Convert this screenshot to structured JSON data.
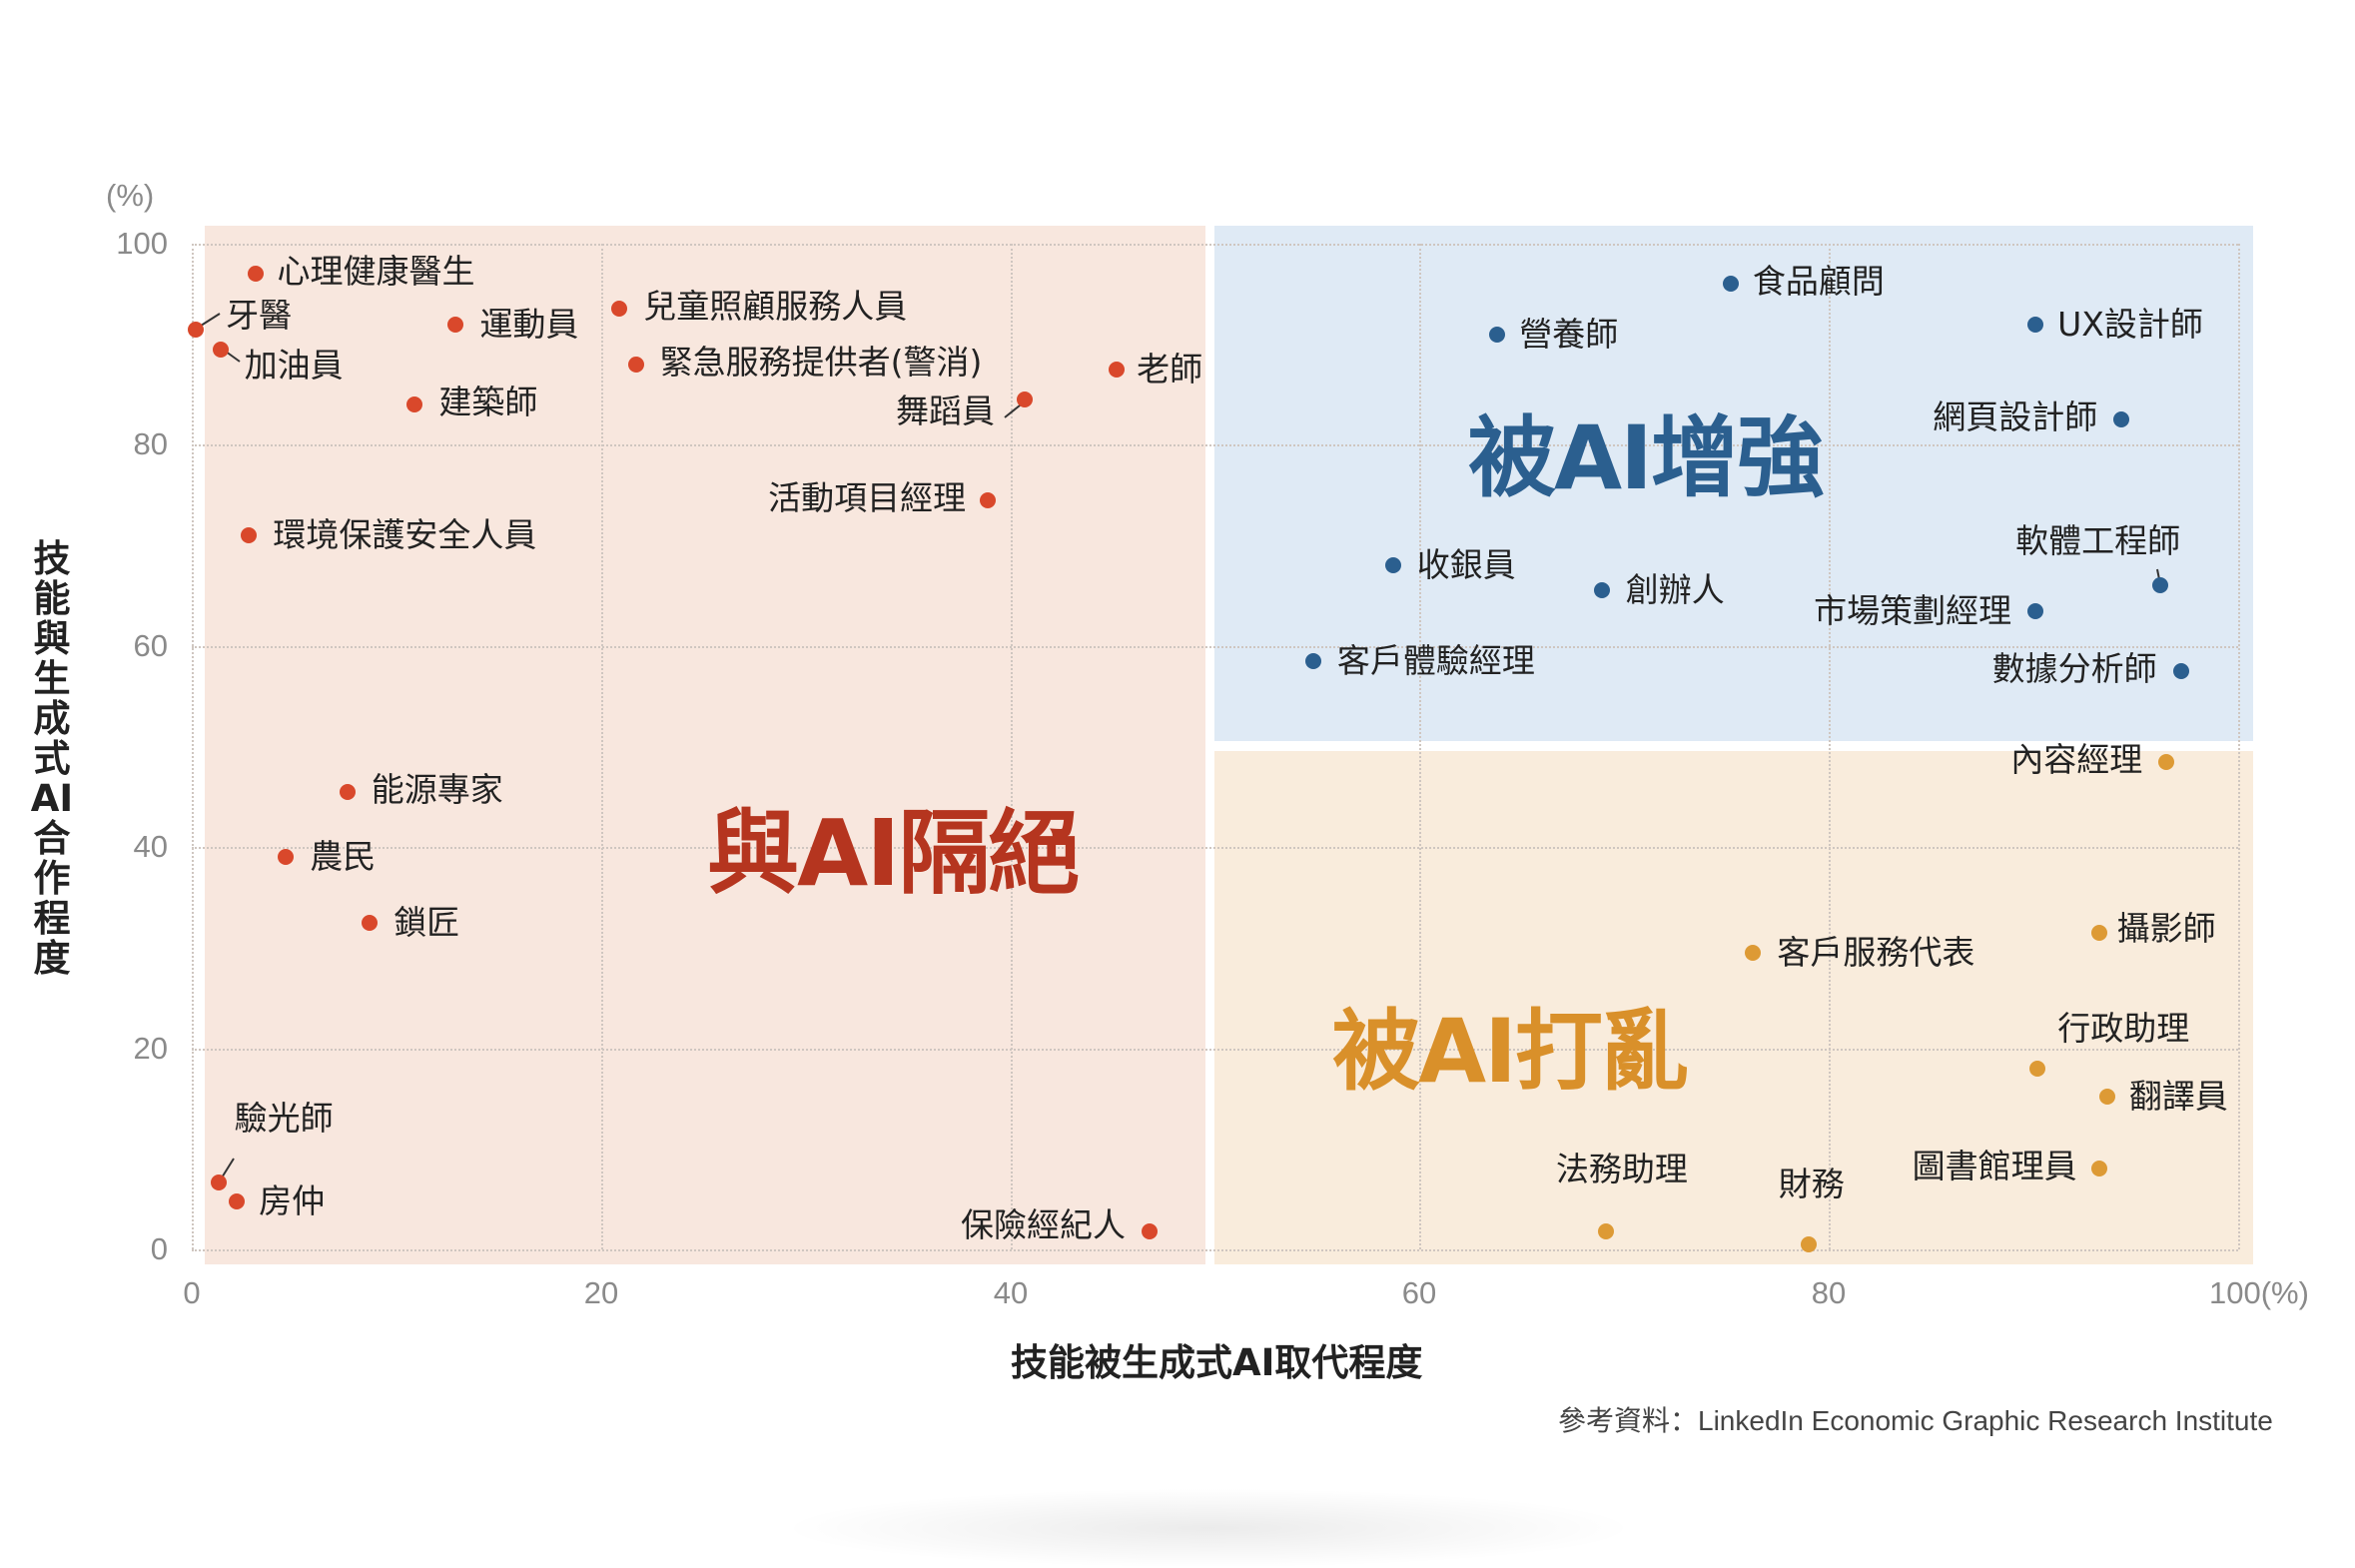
{
  "chart_data": {
    "type": "scatter",
    "title": "",
    "xlabel": "技能被生成式AI取代程度",
    "ylabel": "技能與生成式AI合作程度",
    "x_unit": "(%)",
    "y_unit": "(%)",
    "xlim": [
      0,
      100
    ],
    "ylim": [
      0,
      100
    ],
    "x_ticks": [
      "0",
      "20",
      "40",
      "60",
      "80",
      "100"
    ],
    "y_ticks": [
      "0",
      "20",
      "40",
      "60",
      "80",
      "100"
    ],
    "grid": true,
    "legend": null,
    "source": "參考資料：LinkedIn Economic Graphic Research Institute",
    "quadrants": [
      {
        "name": "與AI隔絕",
        "color": "#b5351f",
        "bg": "#f8e7de",
        "x_range": [
          0,
          50
        ],
        "y_range": [
          0,
          100
        ]
      },
      {
        "name": "被AI增強",
        "color": "#2b5f8f",
        "bg": "#dfeaf5",
        "x_range": [
          50,
          100
        ],
        "y_range": [
          50,
          100
        ]
      },
      {
        "name": "被AI打亂",
        "color": "#d9902a",
        "bg": "#f9ecdc",
        "x_range": [
          50,
          100
        ],
        "y_range": [
          0,
          50
        ]
      }
    ],
    "series": [
      {
        "name": "與AI隔絕",
        "color": "#d9482b",
        "points": [
          {
            "label": "心理健康醫生",
            "x": 3.1,
            "y": 97
          },
          {
            "label": "牙醫",
            "x": 0.2,
            "y": 91.5
          },
          {
            "label": "加油員",
            "x": 1.4,
            "y": 89.5
          },
          {
            "label": "運動員",
            "x": 12.9,
            "y": 92
          },
          {
            "label": "建築師",
            "x": 10.9,
            "y": 84
          },
          {
            "label": "環境保護安全人員",
            "x": 2.8,
            "y": 71
          },
          {
            "label": "兒童照顧服務人員",
            "x": 20.9,
            "y": 93.5
          },
          {
            "label": "緊急服務提供者(警消)",
            "x": 21.7,
            "y": 88
          },
          {
            "label": "舞蹈員",
            "x": 40.7,
            "y": 84.5
          },
          {
            "label": "老師",
            "x": 45.2,
            "y": 87.5
          },
          {
            "label": "活動項目經理",
            "x": 38.9,
            "y": 74.5
          },
          {
            "label": "能源專家",
            "x": 7.6,
            "y": 45.5
          },
          {
            "label": "農民",
            "x": 4.6,
            "y": 39
          },
          {
            "label": "鎖匠",
            "x": 8.7,
            "y": 32.5
          },
          {
            "label": "驗光師",
            "x": 1.3,
            "y": 6.7
          },
          {
            "label": "房仲",
            "x": 2.2,
            "y": 4.8
          },
          {
            "label": "保險經紀人",
            "x": 46.8,
            "y": 1.8
          }
        ]
      },
      {
        "name": "被AI增強",
        "color": "#2b5f8f",
        "points": [
          {
            "label": "食品顧問",
            "x": 75.2,
            "y": 96
          },
          {
            "label": "營養師",
            "x": 63.8,
            "y": 91
          },
          {
            "label": "UX設計師",
            "x": 90.1,
            "y": 92
          },
          {
            "label": "網頁設計師",
            "x": 94.3,
            "y": 82.5
          },
          {
            "label": "收銀員",
            "x": 58.7,
            "y": 68
          },
          {
            "label": "創辦人",
            "x": 68.9,
            "y": 65.5
          },
          {
            "label": "軟體工程師",
            "x": 96.2,
            "y": 66
          },
          {
            "label": "市場策劃經理",
            "x": 90.1,
            "y": 63.5
          },
          {
            "label": "客戶體驗經理",
            "x": 54.8,
            "y": 58.5
          },
          {
            "label": "數據分析師",
            "x": 97.2,
            "y": 57.5
          }
        ]
      },
      {
        "name": "被AI打亂",
        "color": "#dd9a35",
        "points": [
          {
            "label": "內容經理",
            "x": 96.5,
            "y": 48.5
          },
          {
            "label": "攝影師",
            "x": 93.2,
            "y": 31.5
          },
          {
            "label": "客戶服務代表",
            "x": 76.3,
            "y": 29.5
          },
          {
            "label": "行政助理",
            "x": 90.2,
            "y": 18
          },
          {
            "label": "翻譯員",
            "x": 93.6,
            "y": 15.2
          },
          {
            "label": "圖書館理員",
            "x": 93.2,
            "y": 8
          },
          {
            "label": "法務助理",
            "x": 69.1,
            "y": 1.8
          },
          {
            "label": "財務",
            "x": 79,
            "y": 0.5
          }
        ]
      }
    ]
  },
  "axes": {
    "y_unit": "(%)",
    "x_unit_suffix": "(%)",
    "y_label_chars": [
      "技",
      "能",
      "與",
      "生",
      "成",
      "式",
      "AI",
      "合",
      "作",
      "程",
      "度"
    ],
    "x_label": "技能被生成式AI取代程度",
    "y_ticks": [
      "100",
      "80",
      "60",
      "40",
      "20",
      "0"
    ],
    "x_ticks": [
      "0",
      "20",
      "40",
      "60",
      "80",
      "100"
    ]
  },
  "quadrant_titles": {
    "isolated": "與AI隔絕",
    "enhanced": "被AI增強",
    "disrupted": "被AI打亂"
  },
  "colors": {
    "isolated_dot": "#d9482b",
    "isolated_title": "#b5351f",
    "enhanced_dot": "#2b5f8f",
    "enhanced_title": "#2b5f8f",
    "disrupted_dot": "#dd9a35",
    "disrupted_title": "#d9902a"
  },
  "source": "參考資料：LinkedIn Economic Graphic Research Institute"
}
